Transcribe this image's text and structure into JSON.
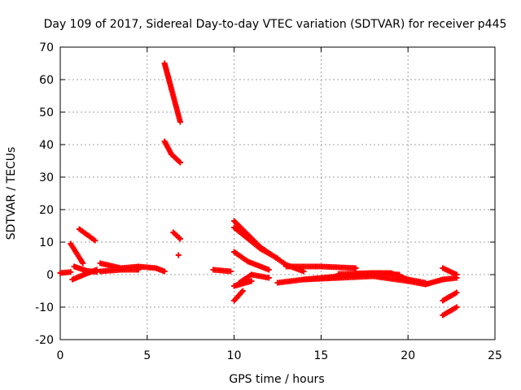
{
  "chart_data": {
    "type": "scatter",
    "title": "Day 109 of 2017, Sidereal Day-to-day VTEC variation (SDTVAR) for receiver p445",
    "xlabel": "GPS time / hours",
    "ylabel": "SDTVAR / TECUs",
    "xlim": [
      0,
      25
    ],
    "ylim": [
      -20,
      70
    ],
    "xticks": [
      0,
      5,
      10,
      15,
      20,
      25
    ],
    "yticks": [
      -20,
      -10,
      0,
      10,
      20,
      30,
      40,
      50,
      60,
      70
    ],
    "grid": true,
    "marker": "plus",
    "series_color": "#ff0000",
    "tracks": [
      {
        "x": [
          0.0,
          0.6
        ],
        "y": [
          0.5,
          0.8
        ]
      },
      {
        "x": [
          0.6,
          1.3
        ],
        "y": [
          9.5,
          3.5
        ]
      },
      {
        "x": [
          0.7,
          1.6,
          2.1
        ],
        "y": [
          -1.5,
          0.5,
          1.5
        ]
      },
      {
        "x": [
          0.8,
          1.5,
          2.1
        ],
        "y": [
          2.5,
          1.2,
          0.8
        ]
      },
      {
        "x": [
          1.1,
          2.0
        ],
        "y": [
          14.0,
          10.5
        ]
      },
      {
        "x": [
          2.3,
          3.5,
          4.5,
          5.5,
          6.0
        ],
        "y": [
          3.5,
          2.0,
          2.5,
          2.0,
          1.0
        ]
      },
      {
        "x": [
          2.3,
          3.5,
          4.5
        ],
        "y": [
          1.0,
          1.5,
          1.5
        ]
      },
      {
        "x": [
          6.0,
          6.4,
          6.9
        ],
        "y": [
          65.0,
          57.0,
          47.0
        ]
      },
      {
        "x": [
          6.0,
          6.4,
          6.9
        ],
        "y": [
          41.0,
          37.0,
          34.5
        ]
      },
      {
        "x": [
          6.5,
          6.9
        ],
        "y": [
          13.0,
          11.0
        ]
      },
      {
        "x": [
          6.8
        ],
        "y": [
          6.0
        ]
      },
      {
        "x": [
          8.8,
          9.8
        ],
        "y": [
          1.5,
          1.0
        ]
      },
      {
        "x": [
          10.0,
          11.5,
          13.0,
          14.0
        ],
        "y": [
          16.5,
          8.5,
          3.0,
          1.0
        ]
      },
      {
        "x": [
          10.0,
          11.5,
          12.5
        ],
        "y": [
          14.5,
          8.0,
          5.0
        ]
      },
      {
        "x": [
          10.0,
          10.8,
          12.0
        ],
        "y": [
          7.0,
          4.0,
          1.5
        ]
      },
      {
        "x": [
          10.0,
          10.5
        ],
        "y": [
          -8.0,
          -5.0
        ]
      },
      {
        "x": [
          10.0,
          11.0
        ],
        "y": [
          -3.5,
          -2.0
        ]
      },
      {
        "x": [
          10.3,
          11.0,
          12.0
        ],
        "y": [
          -2.5,
          0.0,
          -1.0
        ]
      },
      {
        "x": [
          12.5,
          14.0,
          16.0,
          18.0,
          20.0,
          21.0,
          22.0,
          22.8
        ],
        "y": [
          -2.5,
          -1.5,
          -1.0,
          -0.5,
          -2.0,
          -3.0,
          -1.5,
          -1.0
        ]
      },
      {
        "x": [
          13.0,
          15.0,
          17.0
        ],
        "y": [
          2.5,
          2.5,
          2.0
        ]
      },
      {
        "x": [
          14.0,
          16.0,
          18.0,
          19.0,
          20.0,
          21.0
        ],
        "y": [
          -1.5,
          -0.5,
          0.5,
          0.5,
          -1.5,
          -2.5
        ]
      },
      {
        "x": [
          16.0,
          18.0,
          19.5
        ],
        "y": [
          0.2,
          0.5,
          0.0
        ]
      },
      {
        "x": [
          22.0,
          22.8
        ],
        "y": [
          2.0,
          0.0
        ]
      },
      {
        "x": [
          22.0,
          22.8
        ],
        "y": [
          -8.0,
          -5.5
        ]
      },
      {
        "x": [
          22.0,
          22.8
        ],
        "y": [
          -12.5,
          -10.0
        ]
      }
    ]
  }
}
